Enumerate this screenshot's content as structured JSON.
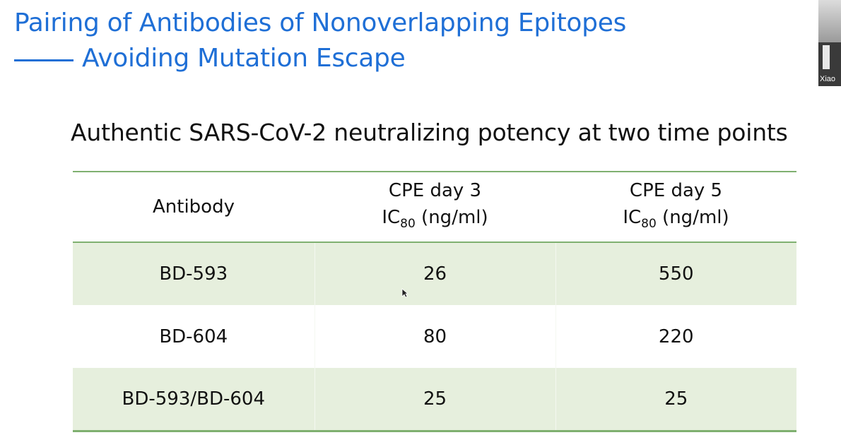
{
  "slide": {
    "title_line1": "Pairing of Antibodies of Nonoverlapping Epitopes",
    "title_line2": "Avoiding Mutation Escape",
    "subtitle": "Authentic  SARS-CoV-2 neutralizing potency at two time points"
  },
  "video": {
    "participant_name": "Xiao"
  },
  "table": {
    "headers": {
      "antibody": "Antibody",
      "day3_top": "CPE day 3",
      "day3_ic": "IC",
      "day3_sub": "80",
      "day3_unit": " (ng/ml)",
      "day5_top": "CPE day 5",
      "day5_ic": "IC",
      "day5_sub": "80",
      "day5_unit": " (ng/ml)"
    },
    "rows": [
      {
        "antibody": "BD-593",
        "day3": "26",
        "day5": "550"
      },
      {
        "antibody": "BD-604",
        "day3": "80",
        "day5": "220"
      },
      {
        "antibody": "BD-593/BD-604",
        "day3": "25",
        "day5": "25"
      }
    ]
  },
  "colors": {
    "title": "#1f6fd6",
    "table_rule": "#7fb070",
    "row_shade": "#e6efdd"
  }
}
